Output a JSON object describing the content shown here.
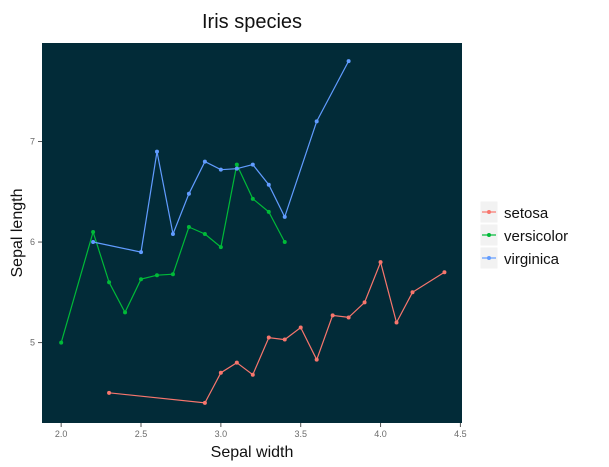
{
  "chart_data": {
    "type": "line",
    "title": "Iris species",
    "xlabel": "Sepal width",
    "ylabel": "Sepal length",
    "xlim": [
      1.88,
      4.51
    ],
    "ylim": [
      4.2,
      7.98
    ],
    "xticks": [
      2.0,
      2.5,
      3.0,
      3.5,
      4.0,
      4.5
    ],
    "xtick_labels": [
      "2.0",
      "2.5",
      "3.0",
      "3.5",
      "4.0",
      "4.5"
    ],
    "yticks": [
      5,
      6,
      7
    ],
    "ytick_labels": [
      "5",
      "6",
      "7"
    ],
    "grid": false,
    "panel_background": "#022b38",
    "legend_position": "right",
    "series": [
      {
        "name": "setosa",
        "color": "#f8766d",
        "points": [
          [
            2.3,
            4.5
          ],
          [
            2.9,
            4.4
          ],
          [
            3.0,
            4.7
          ],
          [
            3.1,
            4.8
          ],
          [
            3.2,
            4.68
          ],
          [
            3.3,
            5.05
          ],
          [
            3.4,
            5.03
          ],
          [
            3.5,
            5.15
          ],
          [
            3.6,
            4.83
          ],
          [
            3.7,
            5.27
          ],
          [
            3.8,
            5.25
          ],
          [
            3.9,
            5.4
          ],
          [
            4.0,
            5.8
          ],
          [
            4.1,
            5.2
          ],
          [
            4.2,
            5.5
          ],
          [
            4.4,
            5.7
          ]
        ]
      },
      {
        "name": "versicolor",
        "color": "#00ba38",
        "points": [
          [
            2.0,
            5.0
          ],
          [
            2.2,
            6.1
          ],
          [
            2.3,
            5.6
          ],
          [
            2.4,
            5.3
          ],
          [
            2.5,
            5.63
          ],
          [
            2.6,
            5.67
          ],
          [
            2.7,
            5.68
          ],
          [
            2.8,
            6.15
          ],
          [
            2.9,
            6.08
          ],
          [
            3.0,
            5.95
          ],
          [
            3.1,
            6.77
          ],
          [
            3.2,
            6.43
          ],
          [
            3.3,
            6.3
          ],
          [
            3.4,
            6.0
          ]
        ]
      },
      {
        "name": "virginica",
        "color": "#619cff",
        "points": [
          [
            2.2,
            6.0
          ],
          [
            2.5,
            5.9
          ],
          [
            2.6,
            6.9
          ],
          [
            2.7,
            6.08
          ],
          [
            2.8,
            6.48
          ],
          [
            2.9,
            6.8
          ],
          [
            3.0,
            6.72
          ],
          [
            3.1,
            6.73
          ],
          [
            3.2,
            6.77
          ],
          [
            3.3,
            6.57
          ],
          [
            3.4,
            6.25
          ],
          [
            3.6,
            7.2
          ],
          [
            3.8,
            7.8
          ]
        ]
      }
    ]
  }
}
